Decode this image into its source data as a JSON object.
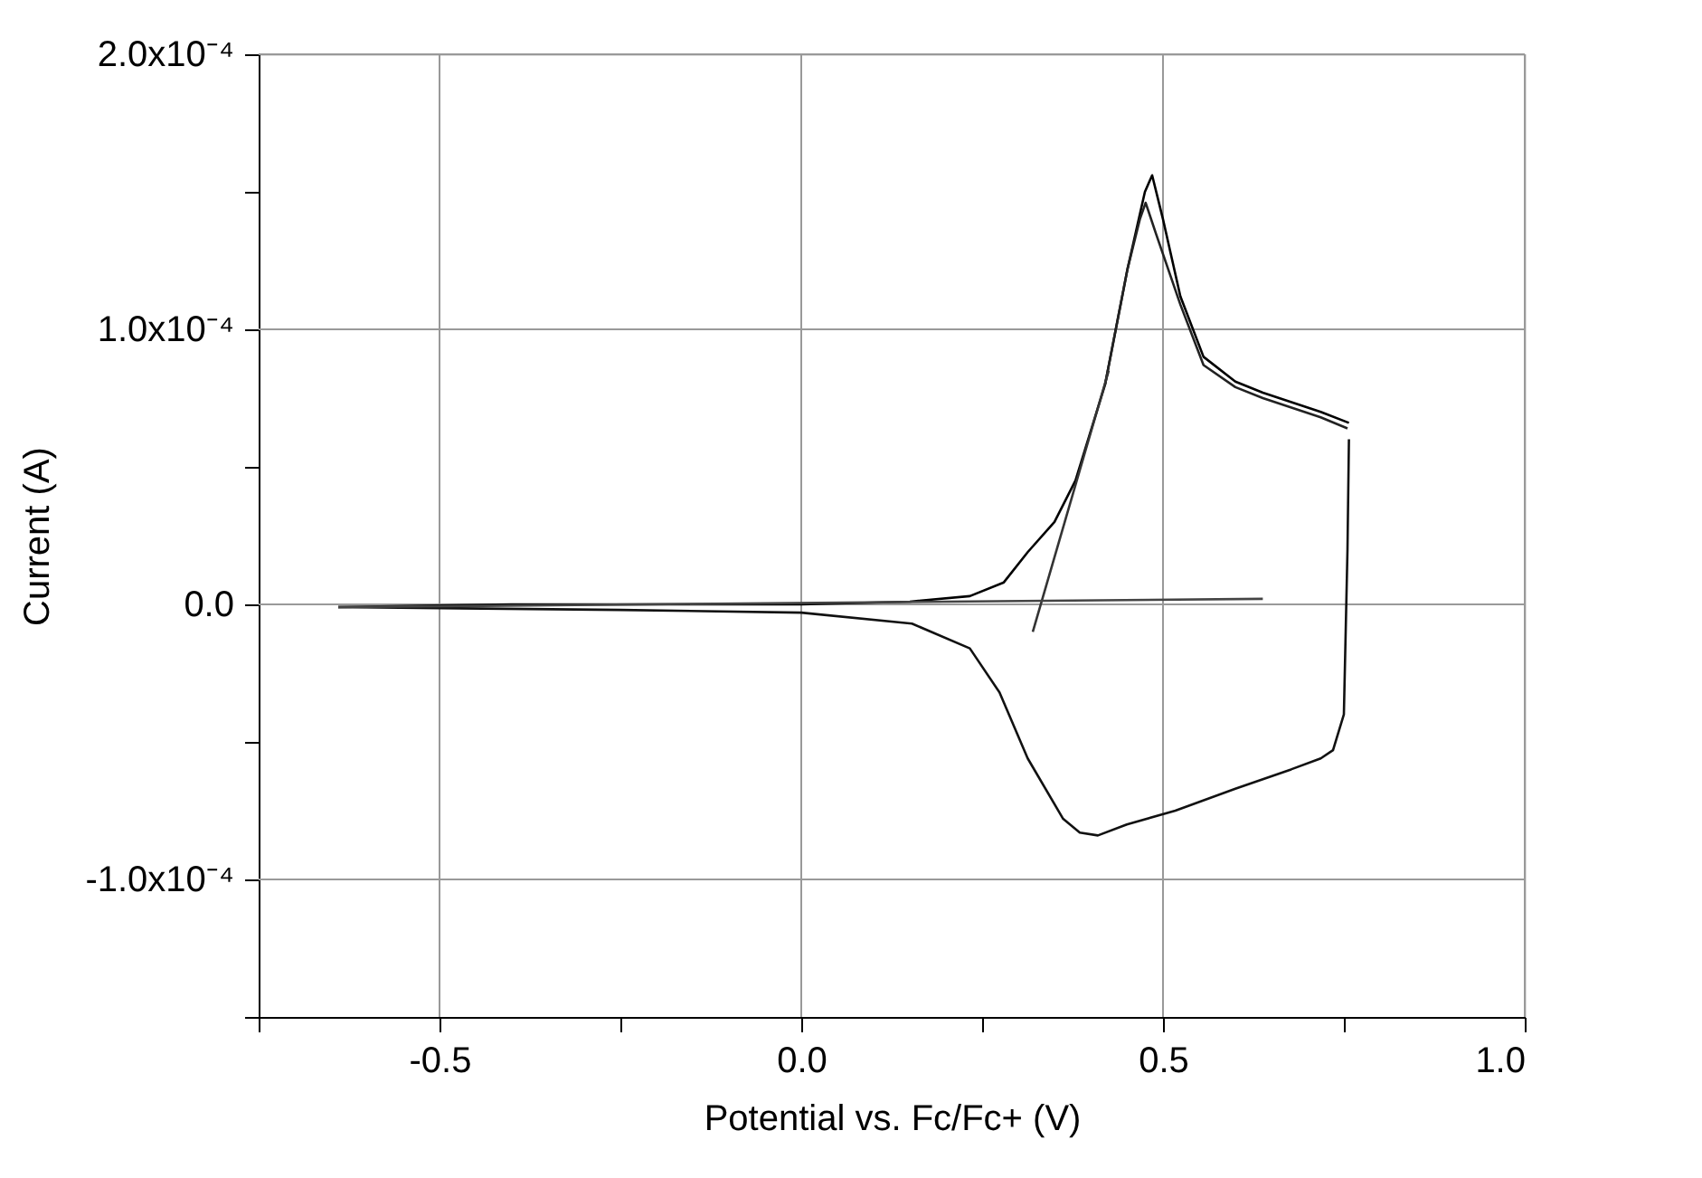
{
  "chart_data": {
    "type": "line",
    "xlabel": "Potential vs. Fc/Fc+ (V)",
    "ylabel": "Current (A)",
    "xlim": [
      -0.75,
      1.0
    ],
    "xticks": [
      {
        "value": -0.75,
        "label": null
      },
      -0.5,
      {
        "value": -0.25,
        "label": null
      },
      {
        "value": 0.0,
        "label": "0.0"
      },
      {
        "value": 0.25,
        "label": null
      },
      0.5,
      {
        "value": 0.75,
        "label": null
      },
      {
        "value": 1.0,
        "label": "1.0"
      }
    ],
    "ylim": [
      -0.00015,
      0.0002
    ],
    "yticks": [
      {
        "value": -0.00015,
        "label": null
      },
      {
        "value": -0.0001,
        "label": "-1.0x10⁻⁴"
      },
      {
        "value": -5e-05,
        "label": null
      },
      {
        "value": 0,
        "label": "0.0"
      },
      {
        "value": 5e-05,
        "label": null
      },
      {
        "value": 0.0001,
        "label": "1.0x10⁻⁴"
      },
      {
        "value": 0.00015,
        "label": null
      },
      {
        "value": 0.0002,
        "label": "2.0x10⁻⁴"
      }
    ],
    "grid": true,
    "line_style": "solid",
    "marker": "none",
    "series": [
      {
        "color": "#000000",
        "x": [
          -0.64,
          -0.4,
          -0.25,
          0.0,
          0.15,
          0.233,
          0.28,
          0.313,
          0.35,
          0.379,
          0.42,
          0.451,
          0.475,
          0.485,
          0.5,
          0.524,
          0.556,
          0.6,
          0.638,
          0.718,
          0.757
        ],
        "values": [
          -1e-06,
          0.0,
          0.0,
          0.0,
          1e-06,
          3e-06,
          8e-06,
          1.9e-05,
          3e-05,
          4.5e-05,
          8e-05,
          0.000122,
          0.00015,
          0.000156,
          0.00014,
          0.000112,
          9e-05,
          8.1e-05,
          7.7e-05,
          7e-05,
          6.6e-05
        ]
      },
      {
        "color": "#222222",
        "x": [
          0.42,
          0.451,
          0.468,
          0.476,
          0.49,
          0.524,
          0.556,
          0.6,
          0.638,
          0.718,
          0.755
        ],
        "values": [
          8e-05,
          0.000122,
          0.00014,
          0.000146,
          0.000135,
          0.000109,
          8.7e-05,
          7.9e-05,
          7.5e-05,
          6.8e-05,
          6.4e-05
        ]
      },
      {
        "color": "#111111",
        "x": [
          0.757,
          0.755,
          0.75,
          0.735,
          0.718,
          0.677,
          0.6,
          0.517,
          0.45,
          0.41,
          0.385,
          0.362,
          0.313,
          0.274,
          0.233,
          0.153,
          0.0,
          -0.25,
          -0.64
        ],
        "values": [
          6e-05,
          2e-05,
          -4e-05,
          -5.3e-05,
          -5.6e-05,
          -6e-05,
          -6.7e-05,
          -7.5e-05,
          -8e-05,
          -8.4e-05,
          -8.3e-05,
          -7.8e-05,
          -5.6e-05,
          -3.2e-05,
          -1.6e-05,
          -7e-06,
          -3e-06,
          -2e-06,
          -1e-06
        ]
      },
      {
        "color": "#333333",
        "x": [
          0.32,
          0.425
        ],
        "values": [
          -1e-05,
          8.5e-05
        ]
      },
      {
        "color": "#444444",
        "x": [
          -0.64,
          0.638
        ],
        "values": [
          -1e-06,
          2e-06
        ]
      }
    ]
  }
}
